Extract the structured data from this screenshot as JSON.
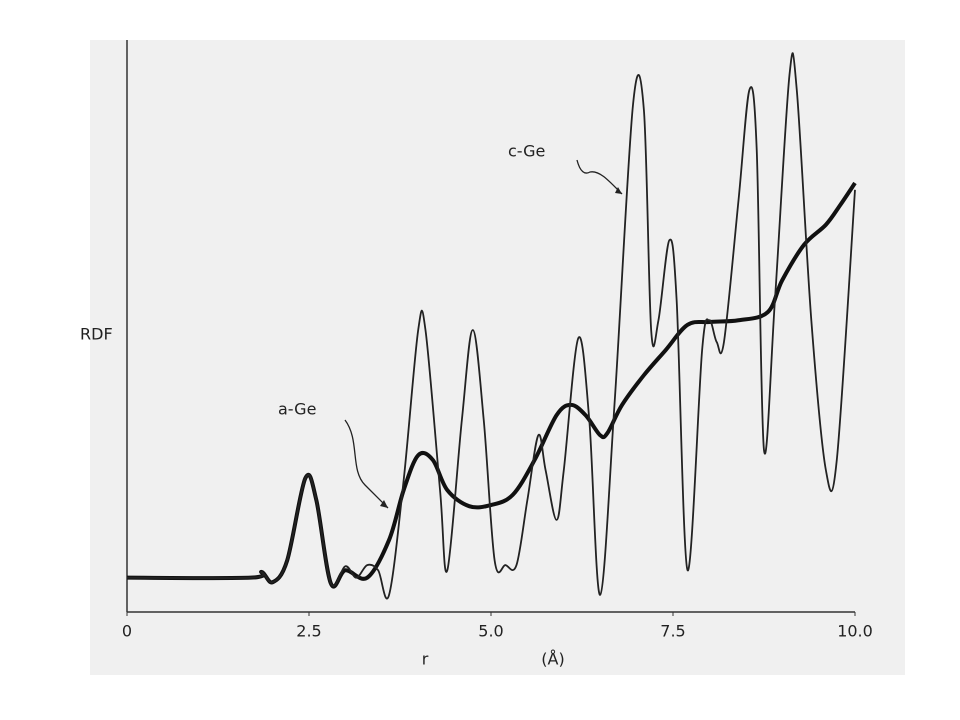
{
  "chart_data": {
    "type": "line",
    "y_label": "RDF",
    "x_label": "r",
    "x_unit": "(Å)",
    "xlim": [
      0,
      10
    ],
    "xticks": [
      0,
      2.5,
      {
        "value": 5,
        "label": "5.0"
      },
      7.5,
      {
        "value": 10,
        "label": "10.0"
      }
    ],
    "ylim": [
      0,
      100
    ],
    "series": [
      {
        "name": "a-Ge",
        "color": "#111111",
        "x": [
          0,
          1.7,
          1.85,
          2.0,
          2.2,
          2.45,
          2.6,
          2.8,
          3.0,
          3.3,
          3.6,
          3.8,
          4.0,
          4.2,
          4.4,
          4.7,
          5.0,
          5.3,
          5.6,
          5.9,
          6.1,
          6.3,
          6.5,
          6.6,
          6.8,
          7.1,
          7.4,
          7.7,
          8.0,
          8.4,
          8.8,
          9.0,
          9.3,
          9.6,
          9.8,
          10.0
        ],
        "values": [
          6,
          6,
          7,
          5.2,
          9,
          23.4,
          19.6,
          5,
          7.3,
          6,
          12.6,
          21.3,
          27.4,
          26.6,
          21.3,
          18.5,
          18.7,
          20.5,
          26.6,
          34.4,
          36.2,
          34.4,
          30.9,
          31.3,
          36.2,
          41.4,
          45.8,
          50.2,
          50.7,
          51,
          52.4,
          58,
          64.2,
          67.7,
          71.2,
          75
        ]
      },
      {
        "name": "c-Ge",
        "color": "#222222",
        "x": [
          0,
          1.7,
          1.85,
          2.0,
          2.2,
          2.45,
          2.6,
          2.8,
          3.0,
          3.15,
          3.3,
          3.45,
          3.6,
          3.8,
          4.0,
          4.1,
          4.3,
          4.4,
          4.6,
          4.75,
          4.9,
          5.05,
          5.2,
          5.35,
          5.5,
          5.65,
          5.75,
          5.9,
          6.0,
          6.2,
          6.35,
          6.5,
          6.7,
          6.95,
          7.1,
          7.2,
          7.3,
          7.45,
          7.55,
          7.7,
          7.9,
          8.0,
          8.1,
          8.2,
          8.4,
          8.55,
          8.65,
          8.75,
          8.9,
          9.1,
          9.2,
          9.4,
          9.6,
          9.75,
          10.0
        ],
        "values": [
          6,
          6,
          7,
          5.2,
          9,
          23.4,
          19.6,
          5,
          8,
          6,
          8.2,
          7.3,
          3,
          23,
          49.3,
          49.3,
          21.3,
          7.3,
          33.6,
          49.3,
          33.6,
          9,
          8.2,
          8.2,
          19.6,
          30.9,
          24.8,
          16.1,
          24.8,
          47.9,
          33.6,
          3,
          37,
          88.6,
          87.8,
          49.3,
          51,
          65,
          54.5,
          7.3,
          45.8,
          51,
          47.2,
          47.2,
          72,
          91.3,
          80.8,
          28.3,
          54.5,
          93.9,
          91.3,
          51,
          24.8,
          26.6,
          73.8
        ]
      }
    ]
  }
}
